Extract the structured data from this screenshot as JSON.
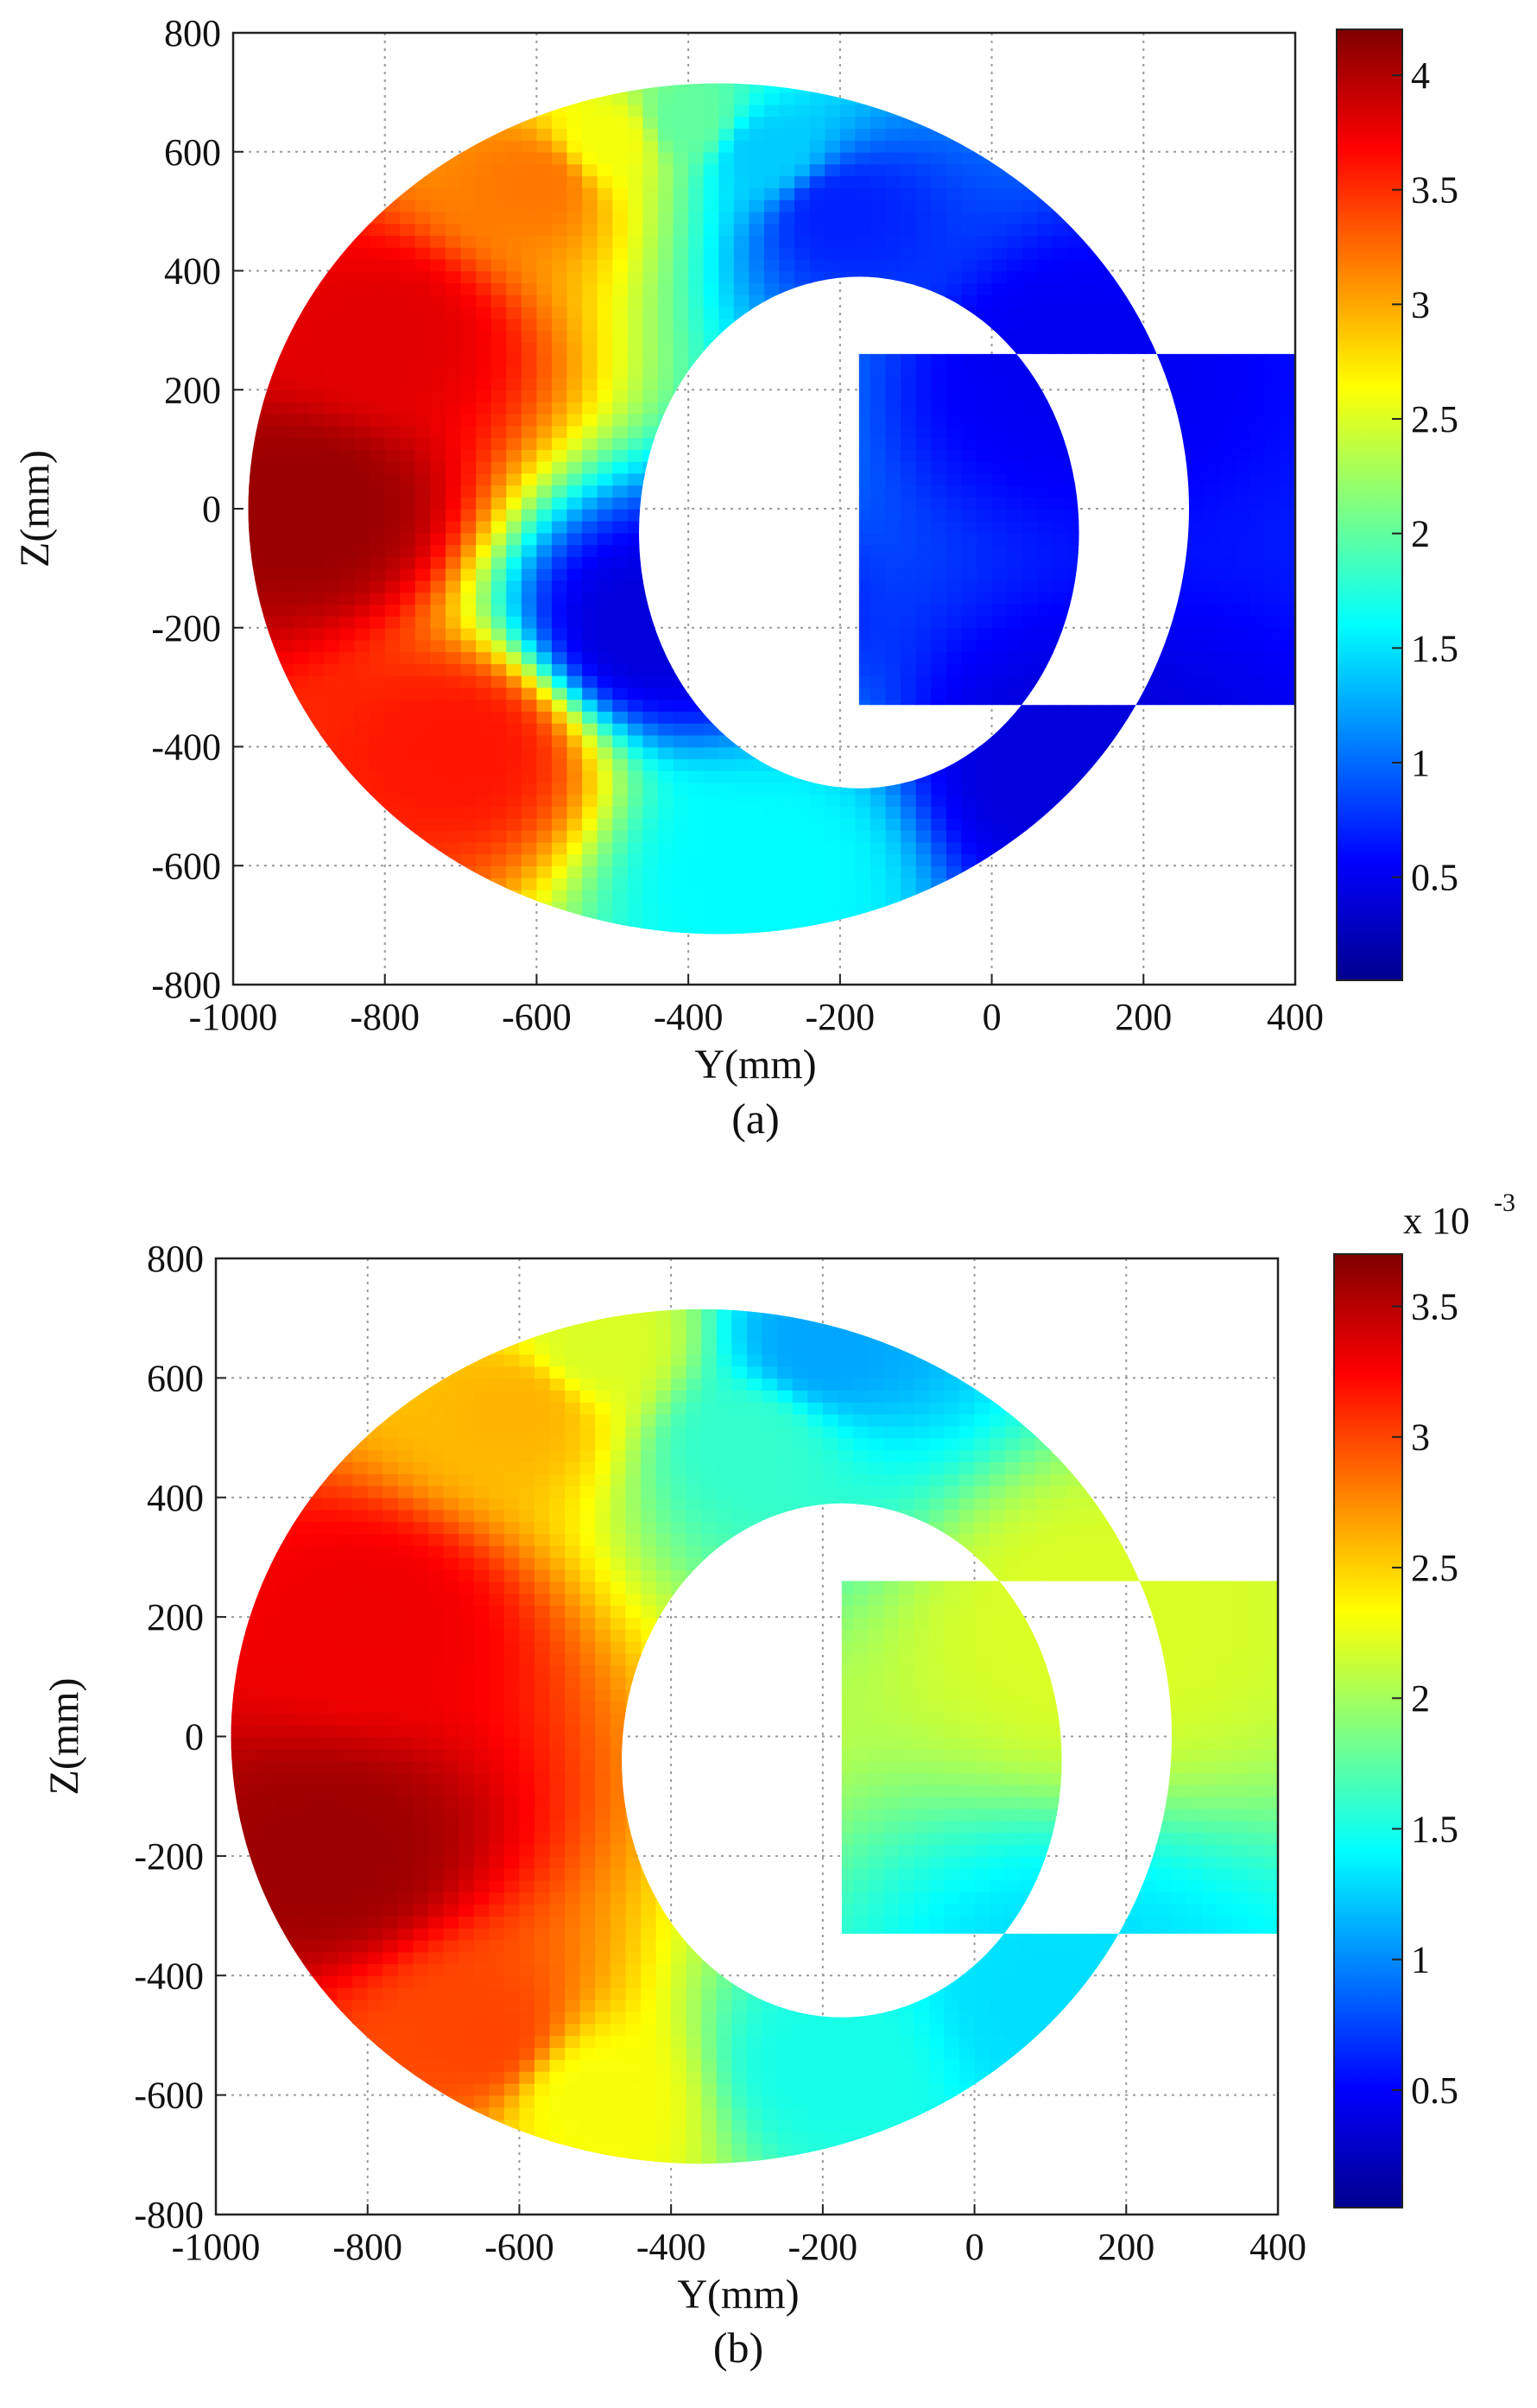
{
  "colormap": [
    "#00008f",
    "#0000ff",
    "#0080ff",
    "#00ffff",
    "#80ff80",
    "#ffff00",
    "#ff8000",
    "#ff0000",
    "#800000"
  ],
  "chart_data": [
    {
      "type": "heatmap",
      "caption": "(a)",
      "xlabel": "Y(mm)",
      "ylabel": "Z(mm)",
      "xlim": [
        -1000,
        400
      ],
      "ylim": [
        -800,
        800
      ],
      "xticks": [
        "-1000",
        "-800",
        "-600",
        "-400",
        "-200",
        "0",
        "200",
        "400"
      ],
      "yticks": [
        "800",
        "600",
        "400",
        "200",
        "0",
        "-200",
        "-400",
        "-600",
        "-800"
      ],
      "grid": true,
      "colorbar": {
        "range": [
          0.05,
          4.2
        ],
        "ticks": [
          "4",
          "3.5",
          "3",
          "2.5",
          "2",
          "1.5",
          "1",
          "0.5"
        ],
        "multiplier": ""
      },
      "shape": "C-shaped ring section, outer ellipse centre (-360, 0), semi-axes 620 x 715; inner opening centre (-175, -40), semi-axes 290 x 430; open toward +Y",
      "field_samples": [
        {
          "y": -900,
          "z": 0,
          "value": 4.1
        },
        {
          "y": -800,
          "z": 300,
          "value": 3.8
        },
        {
          "y": -700,
          "z": -400,
          "value": 3.6
        },
        {
          "y": -600,
          "z": 550,
          "value": 3.2
        },
        {
          "y": -500,
          "z": 620,
          "value": 2.6
        },
        {
          "y": -400,
          "z": 650,
          "value": 2.0
        },
        {
          "y": -300,
          "z": 600,
          "value": 1.4
        },
        {
          "y": -200,
          "z": 500,
          "value": 0.7
        },
        {
          "y": 100,
          "z": 250,
          "value": 0.5
        },
        {
          "y": -450,
          "z": -200,
          "value": 0.4
        },
        {
          "y": -300,
          "z": -600,
          "value": 1.6
        },
        {
          "y": 100,
          "z": -450,
          "value": 0.4
        }
      ]
    },
    {
      "type": "heatmap",
      "caption": "(b)",
      "xlabel": "Y(mm)",
      "ylabel": "Z(mm)",
      "xlim": [
        -1000,
        400
      ],
      "ylim": [
        -800,
        800
      ],
      "xticks": [
        "-1000",
        "-800",
        "-600",
        "-400",
        "-200",
        "0",
        "200",
        "400"
      ],
      "yticks": [
        "800",
        "600",
        "400",
        "200",
        "0",
        "-200",
        "-400",
        "-600",
        "-800"
      ],
      "grid": true,
      "colorbar": {
        "range": [
          0.05,
          3.7
        ],
        "ticks": [
          "3.5",
          "3",
          "2.5",
          "2",
          "1.5",
          "1",
          "0.5"
        ],
        "multiplier": "x 10",
        "exponent": "-3"
      },
      "shape": "C-shaped ring section, outer ellipse centre (-360, 0), semi-axes 620 x 715; inner opening centre (-175, -40), semi-axes 290 x 430; open toward +Y",
      "field_samples": [
        {
          "y": -850,
          "z": -200,
          "value": 3.6
        },
        {
          "y": -800,
          "z": 200,
          "value": 3.3
        },
        {
          "y": -650,
          "z": -500,
          "value": 3.0
        },
        {
          "y": -600,
          "z": 550,
          "value": 2.6
        },
        {
          "y": -500,
          "z": 650,
          "value": 2.2
        },
        {
          "y": -500,
          "z": -600,
          "value": 2.3
        },
        {
          "y": -300,
          "z": 500,
          "value": 1.6
        },
        {
          "y": -200,
          "z": 650,
          "value": 1.1
        },
        {
          "y": 150,
          "z": 200,
          "value": 2.2
        },
        {
          "y": -200,
          "z": -550,
          "value": 1.5
        },
        {
          "y": 100,
          "z": -450,
          "value": 1.3
        }
      ]
    }
  ]
}
